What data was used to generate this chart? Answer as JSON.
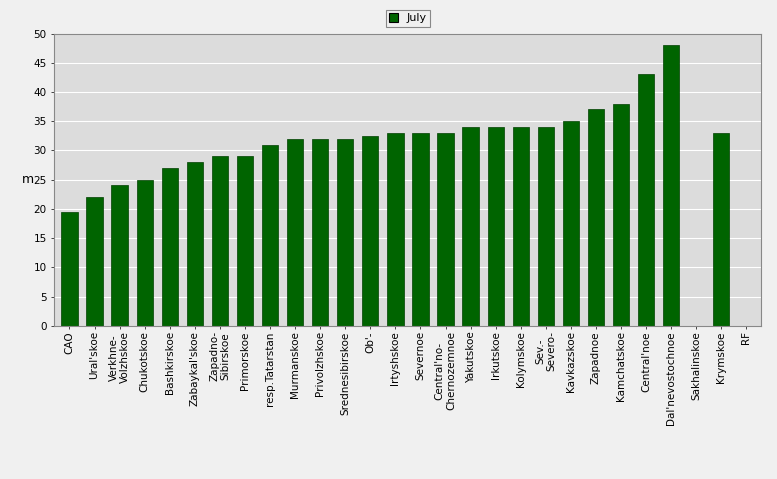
{
  "categories": [
    "CAO",
    "Ural'skoe",
    "Verkhne-\nVolzhskoe",
    "Chukotskoe",
    "Bashkirskoe",
    "Zabaykal'skoe",
    "Zapadno-\nSibirskoe",
    "Primorskoe",
    "resp.Tatarstan",
    "Murmanskoe",
    "Privolzhskoe",
    "Srednesibirskoe",
    "Ob'-",
    "Irtyshskoe",
    "Severnoe",
    "Central'no-\nChernozemnoe",
    "Yakutskoe",
    "Irkutskoe",
    "Kolymskoe",
    "Sev.-\nSevero-",
    "Kavkazskoe",
    "Zapadnoe",
    "Kamchatskoe",
    "Central'noe",
    "Dal'nevostochnoe",
    "Sakhalinskoe",
    "Krymskoe",
    "RF"
  ],
  "values": [
    19.5,
    22.0,
    24.0,
    25.0,
    27.0,
    28.0,
    29.0,
    29.0,
    31.0,
    32.0,
    32.0,
    32.0,
    32.5,
    33.0,
    33.0,
    33.0,
    34.0,
    34.0,
    34.0,
    34.0,
    35.0,
    37.0,
    38.0,
    43.0,
    48.0,
    0.0,
    33.0,
    0.0
  ],
  "bar_color": "#006400",
  "bar_edge_color": "#004000",
  "ylabel": "m",
  "ylim": [
    0,
    50
  ],
  "yticks": [
    0,
    5,
    10,
    15,
    20,
    25,
    30,
    35,
    40,
    45,
    50
  ],
  "legend_label": "July",
  "legend_patch_color": "#006400",
  "plot_bg_color": "#dcdcdc",
  "fig_bg_color": "#f0f0f0",
  "grid_color": "#ffffff",
  "tick_fontsize": 7.5,
  "ylabel_fontsize": 9
}
